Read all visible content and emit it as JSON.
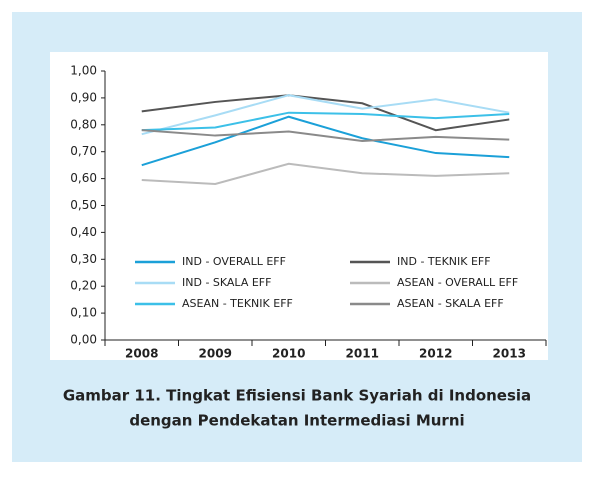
{
  "chart_data": {
    "type": "line",
    "title": [
      "Gambar 11. Tingkat Efisiensi Bank Syariah di Indonesia",
      "dengan Pendekatan Intermediasi Murni"
    ],
    "categories": [
      "2008",
      "2009",
      "2010",
      "2011",
      "2012",
      "2013"
    ],
    "series": [
      {
        "name": "IND - OVERALL EFF",
        "color": "#1ba0d8",
        "values": [
          0.65,
          0.735,
          0.83,
          0.75,
          0.695,
          0.68
        ]
      },
      {
        "name": "IND - TEKNIK EFF",
        "color": "#555555",
        "values": [
          0.85,
          0.885,
          0.91,
          0.88,
          0.78,
          0.82
        ]
      },
      {
        "name": "IND - SKALA EFF",
        "color": "#a8dcf5",
        "values": [
          0.765,
          0.835,
          0.91,
          0.86,
          0.895,
          0.845
        ]
      },
      {
        "name": "ASEAN - OVERALL EFF",
        "color": "#bbbbbb",
        "values": [
          0.595,
          0.58,
          0.655,
          0.62,
          0.61,
          0.62
        ]
      },
      {
        "name": "ASEAN - TEKNIK EFF",
        "color": "#3cc0e8",
        "values": [
          0.78,
          0.79,
          0.845,
          0.84,
          0.825,
          0.84
        ]
      },
      {
        "name": "ASEAN - SKALA EFF",
        "color": "#8a8a8a",
        "values": [
          0.78,
          0.76,
          0.775,
          0.74,
          0.755,
          0.745
        ]
      }
    ],
    "ylim": [
      0,
      1
    ],
    "yticks": [
      {
        "value": 0,
        "label": "0,00"
      },
      {
        "value": 0.1,
        "label": "0,10"
      },
      {
        "value": 0.2,
        "label": "0,20"
      },
      {
        "value": 0.3,
        "label": "0,30"
      },
      {
        "value": 0.4,
        "label": "0,40"
      },
      {
        "value": 0.5,
        "label": "0,50"
      },
      {
        "value": 0.6,
        "label": "0,60"
      },
      {
        "value": 0.7,
        "label": "0,70"
      },
      {
        "value": 0.8,
        "label": "0,80"
      },
      {
        "value": 0.9,
        "label": "0,90"
      },
      {
        "value": 1,
        "label": "1,00"
      }
    ],
    "legend": "lower"
  }
}
